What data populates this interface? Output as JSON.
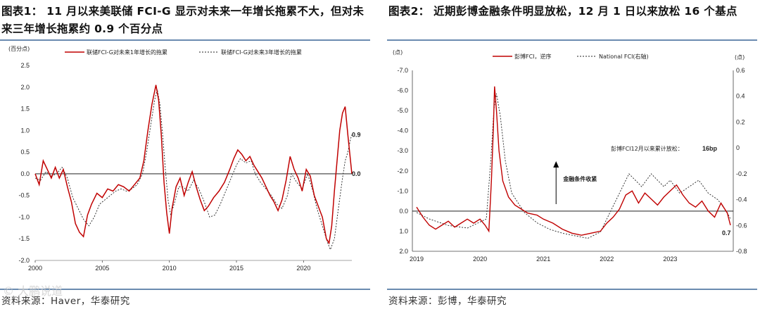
{
  "left": {
    "title": "图表1：  11 月以来美联储 FCI-G 显示对未来一年增长拖累不大，但对未来三年增长拖累约 0.9 个百分点",
    "source": "资料来源：Haver，华泰研究",
    "watermark": "© 大鹏说道"
  },
  "right": {
    "title": "图表2：  近期彭博金融条件明显放松，12 月 1 日以来放松 16 个基点",
    "source": "资料来源：彭博，华泰研究"
  },
  "chart_data": [
    {
      "type": "line",
      "ylabel": "(百分点)",
      "ylim": [
        -2.0,
        2.5
      ],
      "yticks": [
        "2.5",
        "2.0",
        "1.5",
        "1.0",
        "0.5",
        "0.0",
        "-0.5",
        "-1.0",
        "-1.5",
        "-2.0"
      ],
      "xlim": [
        2000,
        2023.6
      ],
      "xticks": [
        "2000",
        "2005",
        "2010",
        "2015",
        "2020"
      ],
      "legend_position": "top",
      "end_labels": {
        "series1": "0.0",
        "series2": "0.9"
      },
      "colors": {
        "series1": "#c00000",
        "series2": "#222222"
      },
      "series": [
        {
          "name": "联储FCI-G对未来1年增长的拖累",
          "style": "solid",
          "points": [
            [
              2000.0,
              0.0
            ],
            [
              2000.3,
              -0.25
            ],
            [
              2000.6,
              0.3
            ],
            [
              2000.9,
              0.1
            ],
            [
              2001.2,
              -0.1
            ],
            [
              2001.5,
              0.15
            ],
            [
              2001.8,
              -0.1
            ],
            [
              2002.1,
              0.1
            ],
            [
              2002.4,
              -0.3
            ],
            [
              2002.7,
              -0.65
            ],
            [
              2003.0,
              -1.15
            ],
            [
              2003.3,
              -1.35
            ],
            [
              2003.6,
              -1.45
            ],
            [
              2003.9,
              -0.95
            ],
            [
              2004.2,
              -0.7
            ],
            [
              2004.6,
              -0.45
            ],
            [
              2005.0,
              -0.55
            ],
            [
              2005.4,
              -0.35
            ],
            [
              2005.8,
              -0.4
            ],
            [
              2006.2,
              -0.25
            ],
            [
              2006.6,
              -0.3
            ],
            [
              2007.0,
              -0.4
            ],
            [
              2007.4,
              -0.25
            ],
            [
              2007.8,
              -0.1
            ],
            [
              2008.1,
              0.3
            ],
            [
              2008.4,
              1.0
            ],
            [
              2008.7,
              1.6
            ],
            [
              2009.0,
              2.05
            ],
            [
              2009.2,
              1.7
            ],
            [
              2009.4,
              0.9
            ],
            [
              2009.6,
              -0.2
            ],
            [
              2009.8,
              -0.9
            ],
            [
              2010.0,
              -1.38
            ],
            [
              2010.2,
              -0.8
            ],
            [
              2010.5,
              -0.3
            ],
            [
              2010.8,
              -0.1
            ],
            [
              2011.1,
              -0.5
            ],
            [
              2011.4,
              -0.2
            ],
            [
              2011.7,
              0.05
            ],
            [
              2012.0,
              -0.3
            ],
            [
              2012.3,
              -0.6
            ],
            [
              2012.6,
              -0.85
            ],
            [
              2012.9,
              -0.75
            ],
            [
              2013.3,
              -0.55
            ],
            [
              2013.7,
              -0.4
            ],
            [
              2014.1,
              -0.2
            ],
            [
              2014.5,
              0.1
            ],
            [
              2014.8,
              0.35
            ],
            [
              2015.1,
              0.55
            ],
            [
              2015.4,
              0.45
            ],
            [
              2015.7,
              0.3
            ],
            [
              2016.0,
              0.4
            ],
            [
              2016.3,
              0.2
            ],
            [
              2016.6,
              0.05
            ],
            [
              2016.9,
              -0.1
            ],
            [
              2017.2,
              -0.3
            ],
            [
              2017.5,
              -0.5
            ],
            [
              2017.8,
              -0.65
            ],
            [
              2018.1,
              -0.85
            ],
            [
              2018.4,
              -0.6
            ],
            [
              2018.7,
              -0.15
            ],
            [
              2019.0,
              0.4
            ],
            [
              2019.3,
              0.1
            ],
            [
              2019.6,
              -0.1
            ],
            [
              2019.9,
              -0.4
            ],
            [
              2020.2,
              0.1
            ],
            [
              2020.5,
              -0.05
            ],
            [
              2020.8,
              -0.5
            ],
            [
              2021.1,
              -0.75
            ],
            [
              2021.4,
              -1.0
            ],
            [
              2021.7,
              -1.5
            ],
            [
              2021.9,
              -1.6
            ],
            [
              2022.1,
              -1.2
            ],
            [
              2022.3,
              -0.4
            ],
            [
              2022.5,
              0.3
            ],
            [
              2022.7,
              1.0
            ],
            [
              2022.9,
              1.4
            ],
            [
              2023.1,
              1.55
            ],
            [
              2023.3,
              0.9
            ],
            [
              2023.5,
              0.3
            ],
            [
              2023.6,
              0.0
            ]
          ]
        },
        {
          "name": "联储FCI-G对未来3年增长的拖累",
          "style": "dashed",
          "points": [
            [
              2000.0,
              -0.1
            ],
            [
              2000.4,
              -0.15
            ],
            [
              2000.8,
              0.05
            ],
            [
              2001.2,
              -0.05
            ],
            [
              2001.6,
              0.0
            ],
            [
              2002.0,
              0.15
            ],
            [
              2002.4,
              -0.1
            ],
            [
              2002.8,
              -0.55
            ],
            [
              2003.2,
              -0.8
            ],
            [
              2003.6,
              -1.05
            ],
            [
              2004.0,
              -1.2
            ],
            [
              2004.4,
              -1.0
            ],
            [
              2004.8,
              -0.7
            ],
            [
              2005.2,
              -0.6
            ],
            [
              2005.6,
              -0.5
            ],
            [
              2006.0,
              -0.4
            ],
            [
              2006.4,
              -0.35
            ],
            [
              2006.8,
              -0.4
            ],
            [
              2007.2,
              -0.35
            ],
            [
              2007.6,
              -0.25
            ],
            [
              2008.0,
              0.0
            ],
            [
              2008.3,
              0.5
            ],
            [
              2008.6,
              1.1
            ],
            [
              2008.9,
              1.7
            ],
            [
              2009.1,
              1.95
            ],
            [
              2009.3,
              1.6
            ],
            [
              2009.5,
              0.9
            ],
            [
              2009.7,
              0.1
            ],
            [
              2009.9,
              -0.6
            ],
            [
              2010.1,
              -0.95
            ],
            [
              2010.4,
              -0.65
            ],
            [
              2010.7,
              -0.3
            ],
            [
              2011.0,
              -0.3
            ],
            [
              2011.4,
              -0.4
            ],
            [
              2011.8,
              -0.15
            ],
            [
              2012.2,
              -0.35
            ],
            [
              2012.6,
              -0.65
            ],
            [
              2013.0,
              -1.0
            ],
            [
              2013.4,
              -0.95
            ],
            [
              2013.8,
              -0.7
            ],
            [
              2014.2,
              -0.4
            ],
            [
              2014.6,
              -0.1
            ],
            [
              2015.0,
              0.2
            ],
            [
              2015.3,
              0.35
            ],
            [
              2015.7,
              0.25
            ],
            [
              2016.1,
              0.3
            ],
            [
              2016.4,
              0.0
            ],
            [
              2016.8,
              -0.2
            ],
            [
              2017.2,
              -0.35
            ],
            [
              2017.6,
              -0.5
            ],
            [
              2018.0,
              -0.7
            ],
            [
              2018.4,
              -0.8
            ],
            [
              2018.8,
              -0.5
            ],
            [
              2019.1,
              0.0
            ],
            [
              2019.5,
              -0.2
            ],
            [
              2019.9,
              -0.35
            ],
            [
              2020.3,
              0.0
            ],
            [
              2020.7,
              -0.4
            ],
            [
              2021.0,
              -0.8
            ],
            [
              2021.4,
              -1.2
            ],
            [
              2021.8,
              -1.6
            ],
            [
              2022.0,
              -1.75
            ],
            [
              2022.3,
              -1.5
            ],
            [
              2022.6,
              -0.8
            ],
            [
              2022.9,
              -0.1
            ],
            [
              2023.1,
              0.3
            ],
            [
              2023.3,
              0.5
            ],
            [
              2023.5,
              0.8
            ],
            [
              2023.6,
              0.9
            ]
          ]
        }
      ]
    },
    {
      "type": "line",
      "ylabel": "(点)",
      "y2label": "(点)",
      "ylim": [
        2.0,
        -7.0
      ],
      "yticks": [
        "-7.0",
        "-6.0",
        "-5.0",
        "-4.0",
        "-3.0",
        "-2.0",
        "-1.0",
        "0.0",
        "1.0",
        "2.0"
      ],
      "y2lim": [
        -0.8,
        0.6
      ],
      "y2ticks": [
        "0.6",
        "0.4",
        "0.2",
        "0",
        "-0.2",
        "-0.4",
        "-0.6",
        "-0.8"
      ],
      "xlim": [
        2019.0,
        2023.95
      ],
      "xticks": [
        "2019",
        "2020",
        "2021",
        "2022",
        "2023"
      ],
      "legend_position": "top",
      "colors": {
        "series1": "#c00000",
        "series2": "#222222"
      },
      "end_label": "0.7",
      "annotations": {
        "arrow_text": "金融条件收紧",
        "note_text": "彭博FCI12月以来累计放松：",
        "note_value": "16bp"
      },
      "series": [
        {
          "name": "彭博FCI，逆序",
          "axis": "left",
          "style": "solid",
          "points": [
            [
              2019.0,
              -0.2
            ],
            [
              2019.1,
              0.3
            ],
            [
              2019.2,
              0.7
            ],
            [
              2019.3,
              0.9
            ],
            [
              2019.4,
              0.7
            ],
            [
              2019.5,
              0.5
            ],
            [
              2019.6,
              0.8
            ],
            [
              2019.7,
              0.6
            ],
            [
              2019.8,
              0.4
            ],
            [
              2019.9,
              0.6
            ],
            [
              2020.0,
              0.4
            ],
            [
              2020.08,
              0.7
            ],
            [
              2020.14,
              1.0
            ],
            [
              2020.18,
              -1.5
            ],
            [
              2020.21,
              -4.0
            ],
            [
              2020.23,
              -6.2
            ],
            [
              2020.26,
              -5.0
            ],
            [
              2020.3,
              -3.0
            ],
            [
              2020.36,
              -1.5
            ],
            [
              2020.45,
              -0.7
            ],
            [
              2020.55,
              -0.3
            ],
            [
              2020.65,
              -0.1
            ],
            [
              2020.75,
              0.1
            ],
            [
              2020.9,
              0.2
            ],
            [
              2021.0,
              0.4
            ],
            [
              2021.15,
              0.6
            ],
            [
              2021.3,
              0.9
            ],
            [
              2021.45,
              1.1
            ],
            [
              2021.6,
              1.2
            ],
            [
              2021.75,
              1.1
            ],
            [
              2021.9,
              1.0
            ],
            [
              2022.0,
              0.6
            ],
            [
              2022.1,
              0.3
            ],
            [
              2022.2,
              -0.1
            ],
            [
              2022.3,
              -0.8
            ],
            [
              2022.4,
              -1.0
            ],
            [
              2022.5,
              -0.4
            ],
            [
              2022.6,
              -0.9
            ],
            [
              2022.7,
              -0.6
            ],
            [
              2022.8,
              -0.3
            ],
            [
              2022.9,
              -0.7
            ],
            [
              2023.0,
              -1.0
            ],
            [
              2023.1,
              -1.3
            ],
            [
              2023.2,
              -0.8
            ],
            [
              2023.3,
              -0.4
            ],
            [
              2023.4,
              -0.2
            ],
            [
              2023.5,
              -0.5
            ],
            [
              2023.6,
              0.0
            ],
            [
              2023.7,
              0.3
            ],
            [
              2023.8,
              -0.4
            ],
            [
              2023.9,
              0.1
            ],
            [
              2023.95,
              0.7
            ]
          ]
        },
        {
          "name": "National FCI(右轴)",
          "axis": "right",
          "style": "dashed",
          "points": [
            [
              2019.0,
              -0.5
            ],
            [
              2019.2,
              -0.55
            ],
            [
              2019.5,
              -0.6
            ],
            [
              2019.8,
              -0.62
            ],
            [
              2020.1,
              -0.55
            ],
            [
              2020.17,
              -0.1
            ],
            [
              2020.22,
              0.3
            ],
            [
              2020.26,
              0.42
            ],
            [
              2020.32,
              0.25
            ],
            [
              2020.4,
              -0.1
            ],
            [
              2020.5,
              -0.35
            ],
            [
              2020.7,
              -0.5
            ],
            [
              2020.9,
              -0.58
            ],
            [
              2021.1,
              -0.63
            ],
            [
              2021.3,
              -0.66
            ],
            [
              2021.5,
              -0.68
            ],
            [
              2021.7,
              -0.7
            ],
            [
              2021.9,
              -0.65
            ],
            [
              2022.05,
              -0.5
            ],
            [
              2022.2,
              -0.35
            ],
            [
              2022.35,
              -0.2
            ],
            [
              2022.45,
              -0.25
            ],
            [
              2022.55,
              -0.3
            ],
            [
              2022.7,
              -0.2
            ],
            [
              2022.8,
              -0.25
            ],
            [
              2022.9,
              -0.3
            ],
            [
              2023.0,
              -0.25
            ],
            [
              2023.15,
              -0.35
            ],
            [
              2023.3,
              -0.3
            ],
            [
              2023.45,
              -0.25
            ],
            [
              2023.6,
              -0.35
            ],
            [
              2023.75,
              -0.4
            ],
            [
              2023.9,
              -0.5
            ],
            [
              2023.95,
              -0.55
            ]
          ]
        }
      ]
    }
  ]
}
